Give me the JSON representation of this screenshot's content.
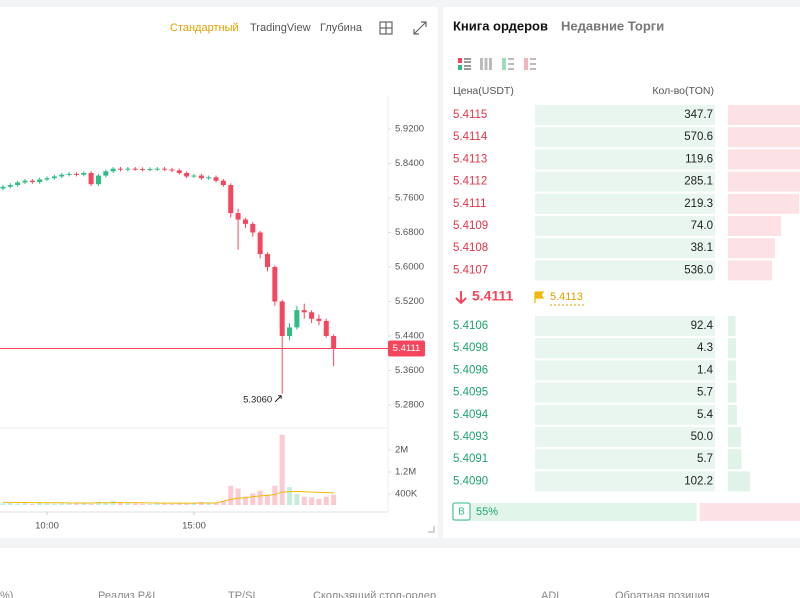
{
  "chart_tabs": [
    "Стандартный",
    "TradingView",
    "Глубина"
  ],
  "chart_data": {
    "type": "candlestick",
    "x": [
      8.5,
      8.75,
      9,
      9.25,
      9.5,
      9.75,
      10,
      10.25,
      10.5,
      10.75,
      11,
      11.25,
      11.5,
      11.75,
      12,
      12.25,
      12.5,
      12.75,
      13,
      13.25,
      13.5,
      13.75,
      14,
      14.25,
      14.5,
      14.75,
      15,
      15.25,
      15.5,
      15.75,
      16,
      16.25,
      16.5,
      16.75,
      17,
      17.25,
      17.5,
      17.75,
      18,
      18.25,
      18.5,
      18.75,
      19,
      19.25,
      19.5,
      19.75
    ],
    "open": [
      5.782,
      5.786,
      5.79,
      5.796,
      5.8,
      5.797,
      5.803,
      5.806,
      5.81,
      5.814,
      5.816,
      5.814,
      5.818,
      5.792,
      5.812,
      5.822,
      5.828,
      5.826,
      5.828,
      5.827,
      5.826,
      5.827,
      5.828,
      5.826,
      5.824,
      5.818,
      5.81,
      5.812,
      5.806,
      5.808,
      5.8,
      5.79,
      5.725,
      5.71,
      5.7,
      5.68,
      5.63,
      5.6,
      5.52,
      5.44,
      5.46,
      5.5,
      5.495,
      5.48,
      5.475,
      5.44
    ],
    "high": [
      5.79,
      5.794,
      5.8,
      5.804,
      5.804,
      5.807,
      5.81,
      5.814,
      5.818,
      5.82,
      5.82,
      5.822,
      5.822,
      5.816,
      5.826,
      5.832,
      5.832,
      5.832,
      5.832,
      5.831,
      5.831,
      5.832,
      5.832,
      5.83,
      5.828,
      5.822,
      5.816,
      5.816,
      5.812,
      5.812,
      5.804,
      5.794,
      5.735,
      5.714,
      5.704,
      5.684,
      5.634,
      5.604,
      5.524,
      5.47,
      5.51,
      5.515,
      5.5,
      5.49,
      5.48,
      5.444
    ],
    "low": [
      5.778,
      5.782,
      5.786,
      5.792,
      5.793,
      5.793,
      5.799,
      5.802,
      5.806,
      5.81,
      5.81,
      5.81,
      5.788,
      5.788,
      5.808,
      5.818,
      5.822,
      5.822,
      5.823,
      5.822,
      5.822,
      5.823,
      5.822,
      5.82,
      5.814,
      5.806,
      5.806,
      5.802,
      5.802,
      5.796,
      5.786,
      5.715,
      5.64,
      5.69,
      5.67,
      5.62,
      5.59,
      5.51,
      5.306,
      5.43,
      5.455,
      5.48,
      5.47,
      5.465,
      5.436,
      5.37
    ],
    "close": [
      5.786,
      5.79,
      5.796,
      5.8,
      5.797,
      5.803,
      5.806,
      5.81,
      5.814,
      5.816,
      5.814,
      5.818,
      5.792,
      5.812,
      5.822,
      5.828,
      5.826,
      5.828,
      5.827,
      5.826,
      5.827,
      5.828,
      5.826,
      5.824,
      5.818,
      5.81,
      5.812,
      5.806,
      5.808,
      5.8,
      5.79,
      5.725,
      5.71,
      5.7,
      5.68,
      5.63,
      5.6,
      5.52,
      5.44,
      5.46,
      5.5,
      5.495,
      5.48,
      5.475,
      5.44,
      5.4111
    ],
    "volume": [
      60000,
      80000,
      50000,
      70000,
      40000,
      90000,
      60000,
      50000,
      70000,
      80000,
      50000,
      60000,
      40000,
      120000,
      90000,
      150000,
      100000,
      80000,
      60000,
      50000,
      40000,
      60000,
      50000,
      40000,
      70000,
      50000,
      60000,
      110000,
      90000,
      70000,
      150000,
      700000,
      600000,
      300000,
      420000,
      520000,
      380000,
      700000,
      2550000,
      650000,
      400000,
      300000,
      280000,
      220000,
      300000,
      380000
    ],
    "volume_ma": [
      100000,
      95000,
      90000,
      90000,
      85000,
      85000,
      80000,
      80000,
      80000,
      75000,
      75000,
      75000,
      75000,
      80000,
      80000,
      85000,
      85000,
      85000,
      80000,
      80000,
      75000,
      75000,
      70000,
      70000,
      70000,
      70000,
      70000,
      75000,
      75000,
      75000,
      140000,
      200000,
      250000,
      270000,
      300000,
      330000,
      350000,
      380000,
      470000,
      480000,
      490000,
      480000,
      470000,
      460000,
      450000,
      440000
    ],
    "xlim": [
      8.4,
      21.6
    ],
    "xticks": [
      {
        "value": 10,
        "label": "10:00"
      },
      {
        "value": 15,
        "label": "15:00"
      }
    ],
    "ylim": [
      5.232,
      6.0
    ],
    "yticks": [
      {
        "value": 5.92,
        "label": "5.9200"
      },
      {
        "value": 5.84,
        "label": "5.8400"
      },
      {
        "value": 5.76,
        "label": "5.7600"
      },
      {
        "value": 5.68,
        "label": "5.6800"
      },
      {
        "value": 5.6,
        "label": "5.6000"
      },
      {
        "value": 5.52,
        "label": "5.5200"
      },
      {
        "value": 5.44,
        "label": "5.4400"
      },
      {
        "value": 5.36,
        "label": "5.3600"
      },
      {
        "value": 5.28,
        "label": "5.2800"
      }
    ],
    "volume_ylim": [
      0,
      2600000
    ],
    "volume_yticks": [
      {
        "value": 2000000,
        "label": "2M"
      },
      {
        "value": 1200000,
        "label": "1.2M"
      },
      {
        "value": 400000,
        "label": "400K"
      }
    ],
    "last_price": 5.4111,
    "low_annotation": {
      "value": 5.306,
      "label": "5.3060"
    },
    "up_color": "#2ebd85",
    "down_color": "#f6465d",
    "ma_color": "#f0b90b"
  },
  "order_book": {
    "tabs": [
      "Книга ордеров",
      "Недавние Торги"
    ],
    "columns": [
      "Цена(USDT)",
      "Кол-во(TON)"
    ],
    "asks": {
      "prices": [
        "5.4115",
        "5.4114",
        "5.4113",
        "5.4112",
        "5.4111",
        "5.4109",
        "5.4108",
        "5.4107"
      ],
      "values": [
        347.7,
        570.6,
        119.6,
        285.1,
        219.3,
        74,
        38.1,
        536
      ],
      "value_labels": [
        "347.7",
        "570.6",
        "119.6",
        "285.1",
        "219.3",
        "74.0",
        "38.1",
        "536.0"
      ]
    },
    "last_price": 5.4111,
    "mark_price": 5.4113,
    "bids": {
      "prices": [
        "5.4106",
        "5.4098",
        "5.4096",
        "5.4095",
        "5.4094",
        "5.4093",
        "5.4091",
        "5.4090"
      ],
      "values": [
        92.4,
        4.3,
        1.4,
        5.7,
        5.4,
        50,
        5.7,
        102.2
      ],
      "value_labels": [
        "92.4",
        "4.3",
        "1.4",
        "5.7",
        "5.4",
        "50.0",
        "5.7",
        "102.2"
      ]
    },
    "buy_badge": "B",
    "buy_ratio": {
      "value": 55,
      "label": "55%"
    }
  },
  "bottom_tabs": [
    "%)",
    "Реализ P&L",
    "TP/SL",
    "Скользящий стоп-ордер",
    "ADL",
    "Обратная позиция"
  ]
}
